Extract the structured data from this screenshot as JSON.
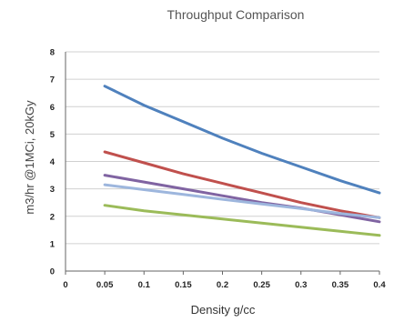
{
  "chart_data": {
    "type": "line",
    "title": "Throughput Comparison",
    "xlabel": "Density g/cc",
    "ylabel": "m3/hr @1MCi, 20kGy",
    "xlim": [
      0,
      0.4
    ],
    "ylim": [
      0,
      8
    ],
    "x_ticks": [
      "0",
      "0.05",
      "0.1",
      "0.15",
      "0.2",
      "0.25",
      "0.3",
      "0.35",
      "0.4"
    ],
    "y_ticks": [
      "0",
      "1",
      "2",
      "3",
      "4",
      "5",
      "6",
      "7",
      "8"
    ],
    "grid": true,
    "legend": "none",
    "series": [
      {
        "color": "#4f81bd",
        "x": [
          0.05,
          0.1,
          0.15,
          0.2,
          0.25,
          0.3,
          0.35,
          0.4
        ],
        "y": [
          6.75,
          6.05,
          5.45,
          4.85,
          4.3,
          3.8,
          3.3,
          2.85
        ]
      },
      {
        "color": "#c0504d",
        "x": [
          0.05,
          0.1,
          0.15,
          0.2,
          0.25,
          0.3,
          0.35,
          0.4
        ],
        "y": [
          4.35,
          3.95,
          3.55,
          3.2,
          2.85,
          2.5,
          2.2,
          1.95
        ]
      },
      {
        "color": "#8064a2",
        "x": [
          0.05,
          0.1,
          0.15,
          0.2,
          0.25,
          0.3,
          0.35,
          0.4
        ],
        "y": [
          3.5,
          3.25,
          3.0,
          2.75,
          2.5,
          2.3,
          2.05,
          1.8
        ]
      },
      {
        "color": "#9db6dd",
        "x": [
          0.05,
          0.1,
          0.15,
          0.2,
          0.25,
          0.3,
          0.35,
          0.4
        ],
        "y": [
          3.15,
          2.97,
          2.8,
          2.62,
          2.45,
          2.28,
          2.1,
          1.95
        ]
      },
      {
        "color": "#9bbb59",
        "x": [
          0.05,
          0.1,
          0.15,
          0.2,
          0.25,
          0.3,
          0.35,
          0.4
        ],
        "y": [
          2.4,
          2.2,
          2.05,
          1.9,
          1.75,
          1.6,
          1.45,
          1.3
        ]
      }
    ]
  }
}
